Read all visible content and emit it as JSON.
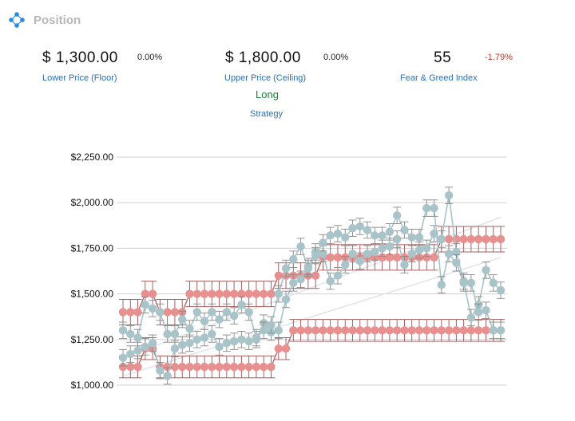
{
  "header": {
    "title": "Position",
    "icon": "position-icon"
  },
  "stats": {
    "floor": {
      "value": "$ 1,300.00",
      "change": "0.00%",
      "label": "Lower Price (Floor)"
    },
    "ceiling": {
      "value": "$ 1,800.00",
      "change": "0.00%",
      "label": "Upper Price (Ceiling)"
    },
    "fear_greed": {
      "value": "55",
      "change": "-1.79%",
      "label": "Fear & Greed Index"
    },
    "strategy": {
      "value": "Long",
      "label": "Strategy"
    }
  },
  "colors": {
    "accent": "#2a6fb8",
    "price": "#a8c4c8",
    "band": "#e89090",
    "errorbar": "#777777",
    "trend": "#e0e4ea",
    "negative": "#c0392b",
    "positive": "#1a7a3a"
  },
  "chart_data": {
    "type": "line",
    "ylim": [
      1000,
      2250
    ],
    "y_ticks": [
      1000,
      1250,
      1500,
      1750,
      2000,
      2250
    ],
    "y_tick_labels": [
      "$1,000.00",
      "$1,250.00",
      "$1,500.00",
      "$1,750.00",
      "$2,000.00",
      "$2,250.00"
    ],
    "x_count": 52,
    "grid": true,
    "series": [
      {
        "values": [
          1150,
          1170,
          1190,
          1210,
          1230,
          1080,
          1050,
          1200,
          1220,
          1230,
          1250,
          1260,
          1280,
          1210,
          1230,
          1240,
          1250,
          1240,
          1250,
          1340,
          1290,
          1300,
          1470,
          1560,
          1580,
          1650,
          1730,
          1720,
          1570,
          1600,
          1660,
          1720,
          1680,
          1720,
          1730,
          1750,
          1760,
          1800,
          1660,
          1720,
          1740,
          1750,
          1830,
          1800,
          2040,
          1730,
          1570,
          1370,
          1440,
          1630,
          1560,
          1520
        ]
      },
      {
        "values": [
          1300,
          1280,
          1260,
          1440,
          1420,
          1400,
          1280,
          1280,
          1360,
          1310,
          1400,
          1350,
          1400,
          1360,
          1400,
          1380,
          1440,
          1400,
          1260,
          1300,
          1330,
          1500,
          1640,
          1690,
          1760,
          1640,
          1710,
          1780,
          1820,
          1830,
          1810,
          1860,
          1870,
          1850,
          1820,
          1820,
          1840,
          1930,
          1850,
          1810,
          1810,
          1970,
          1970,
          1550,
          1720,
          1670,
          1560,
          1560,
          1400,
          1410,
          1300,
          1300
        ]
      },
      {
        "values": [
          1400,
          1400,
          1400,
          1500,
          1500,
          1400,
          1400,
          1400,
          1400,
          1500,
          1500,
          1500,
          1500,
          1500,
          1500,
          1500,
          1500,
          1500,
          1500,
          1500,
          1500,
          1600,
          1600,
          1600,
          1600,
          1600,
          1600,
          1700,
          1700,
          1700,
          1700,
          1700,
          1700,
          1700,
          1700,
          1700,
          1700,
          1700,
          1700,
          1700,
          1700,
          1700,
          1700,
          1800,
          1800,
          1800,
          1800,
          1800,
          1800,
          1800,
          1800,
          1800
        ]
      },
      {
        "values": [
          1100,
          1100,
          1100,
          1200,
          1200,
          1100,
          1100,
          1100,
          1100,
          1100,
          1100,
          1100,
          1100,
          1100,
          1100,
          1100,
          1100,
          1100,
          1100,
          1100,
          1100,
          1200,
          1200,
          1300,
          1300,
          1300,
          1300,
          1300,
          1300,
          1300,
          1300,
          1300,
          1300,
          1300,
          1300,
          1300,
          1300,
          1300,
          1300,
          1300,
          1300,
          1300,
          1300,
          1300,
          1300,
          1300,
          1300,
          1300,
          1300,
          1300,
          1300,
          1300
        ]
      }
    ],
    "trend_lines": [
      {
        "from": [
          0,
          1150
        ],
        "to": [
          51,
          1920
        ]
      },
      {
        "from": [
          0,
          1050
        ],
        "to": [
          51,
          1700
        ]
      }
    ]
  }
}
